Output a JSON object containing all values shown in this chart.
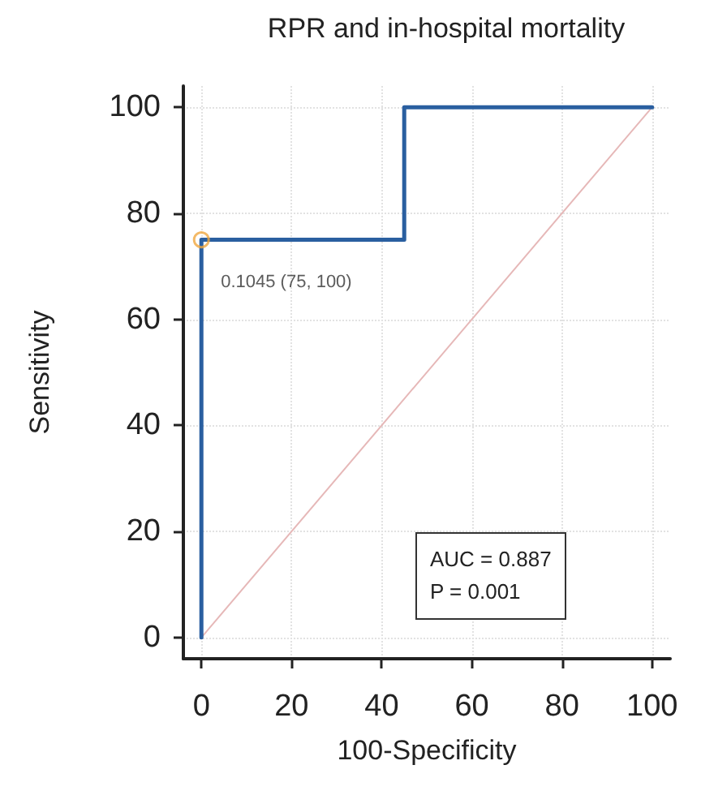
{
  "chart_data": {
    "type": "line",
    "title": "RPR and in-hospital mortality",
    "xlabel": "100-Specificity",
    "ylabel": "Sensitivity",
    "series": [
      {
        "color": "#2a5fa0",
        "marker": "none",
        "x": [
          0,
          0,
          45,
          45,
          100
        ],
        "values": [
          0,
          75,
          75,
          100,
          100
        ]
      },
      {
        "color": "#e6b8b8",
        "marker": "none",
        "x": [
          0,
          100
        ],
        "values": [
          0,
          100
        ]
      },
      {
        "type": "scatter",
        "marker": "circle",
        "color": "#f0a840",
        "x": [
          0
        ],
        "values": [
          75
        ]
      }
    ],
    "annotations": [
      {
        "text": "0.1045 (75, 100)",
        "x": 0,
        "y": 75
      },
      "AUC = 0.887",
      "P = 0.001"
    ],
    "xlim": [
      -4,
      104
    ],
    "ylim": [
      -4,
      104
    ],
    "xticks": [
      0,
      20,
      40,
      60,
      80,
      100
    ],
    "yticks": [
      0,
      20,
      40,
      60,
      80,
      100
    ],
    "grid": true
  }
}
